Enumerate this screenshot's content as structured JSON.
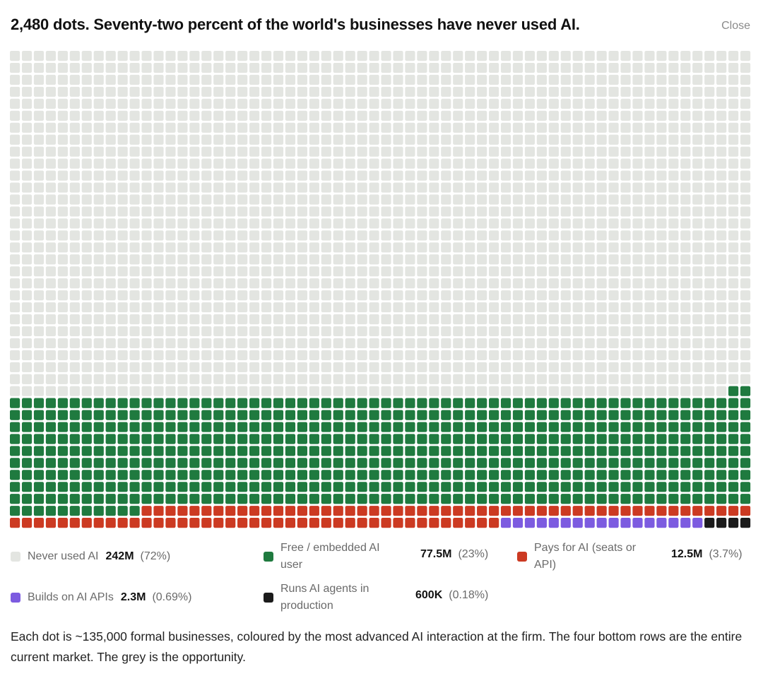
{
  "header": {
    "title": "2,480 dots. Seventy-two percent of the world's businesses have never used AI.",
    "close_label": "Close"
  },
  "chart_data": {
    "type": "waffle",
    "total_dots": 2480,
    "columns": 62,
    "rows": 40,
    "fill_order": "bottom-right to top-left, row by row",
    "unit": "~135,000 formal businesses per dot",
    "categories": [
      {
        "key": "agents",
        "name": "Runs AI agents in production",
        "value": "600K",
        "pct": "(0.18%)",
        "dots": 4,
        "color": "#1b1b1b"
      },
      {
        "key": "apis",
        "name": "Builds on AI APIs",
        "value": "2.3M",
        "pct": "(0.69%)",
        "dots": 17,
        "color": "#7c5be0"
      },
      {
        "key": "pays",
        "name": "Pays for AI (seats or API)",
        "value": "12.5M",
        "pct": "(3.7%)",
        "dots": 92,
        "color": "#cc3a22"
      },
      {
        "key": "free",
        "name": "Free / embedded AI user",
        "value": "77.5M",
        "pct": "(23%)",
        "dots": 571,
        "color": "#1f7a3f"
      },
      {
        "key": "never",
        "name": "Never used AI",
        "value": "242M",
        "pct": "(72%)",
        "dots": 1796,
        "color": "#e3e5e1"
      }
    ]
  },
  "legend": {
    "never": {
      "label": "Never used AI",
      "value": "242M",
      "pct": "(72%)"
    },
    "free": {
      "label_line1": "Free / embedded AI",
      "label_line2": "user",
      "value": "77.5M",
      "pct": "(23%)"
    },
    "pays": {
      "label_line1": "Pays for AI (seats or",
      "label_line2": "API)",
      "value": "12.5M",
      "pct": "(3.7%)"
    },
    "apis": {
      "label": "Builds on AI APIs",
      "value": "2.3M",
      "pct": "(0.69%)"
    },
    "agents": {
      "label_line1": "Runs AI agents in",
      "label_line2": "production",
      "value": "600K",
      "pct": "(0.18%)"
    }
  },
  "caption": "Each dot is ~135,000 formal businesses, coloured by the most advanced AI interaction at the firm. The four bottom rows are the entire current market. The grey is the opportunity.",
  "colors": {
    "never": "#e3e5e1",
    "free": "#1f7a3f",
    "pays": "#cc3a22",
    "apis": "#7c5be0",
    "agents": "#1b1b1b"
  }
}
